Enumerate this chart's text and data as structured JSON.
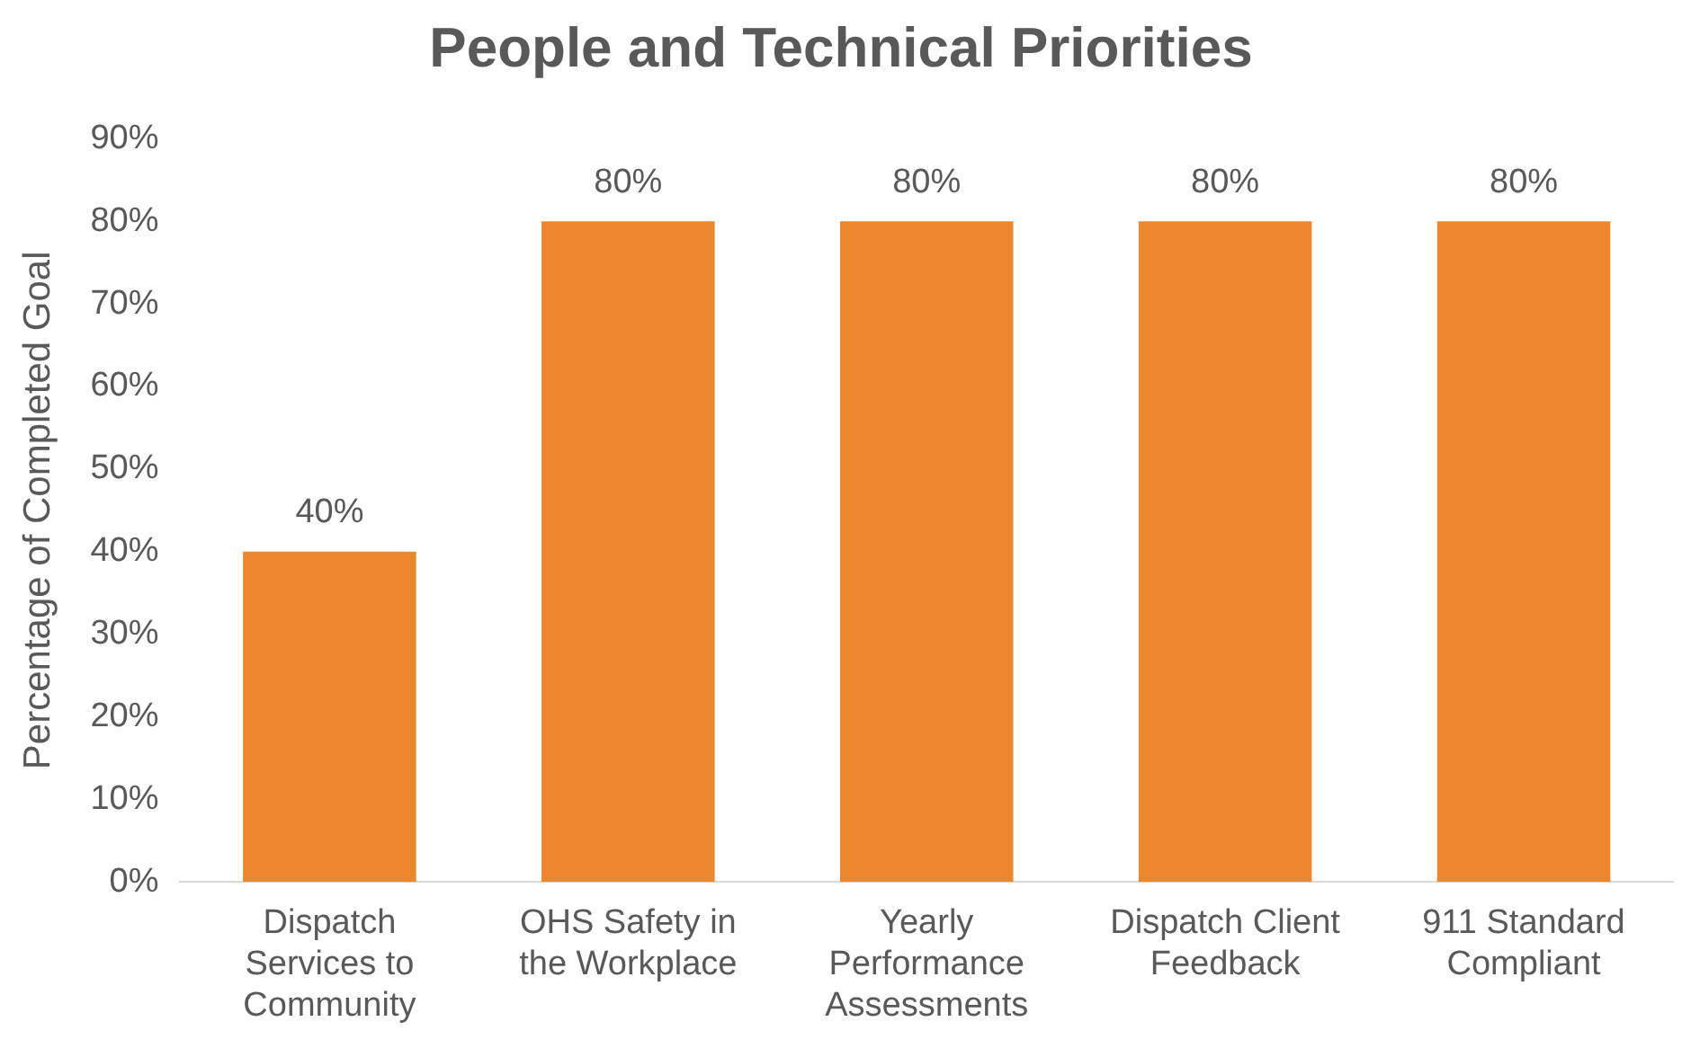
{
  "chart_data": {
    "type": "bar",
    "title": "People and Technical Priorities",
    "ylabel": "Percentage of Completed Goal",
    "categories": [
      "Dispatch Services to Community",
      "OHS Safety in the Workplace",
      "Yearly Performance Assessments",
      "Dispatch Client Feedback",
      "911 Standard Compliant"
    ],
    "values": [
      40,
      80,
      80,
      80,
      80
    ],
    "value_labels": [
      "40%",
      "80%",
      "80%",
      "80%",
      "80%"
    ],
    "color": "#ed872d",
    "ylim": [
      0,
      90
    ],
    "yticks": [
      {
        "value": 0,
        "label": "0%"
      },
      {
        "value": 10,
        "label": "10%"
      },
      {
        "value": 20,
        "label": "20%"
      },
      {
        "value": 30,
        "label": "30%"
      },
      {
        "value": 40,
        "label": "40%"
      },
      {
        "value": 50,
        "label": "50%"
      },
      {
        "value": 60,
        "label": "60%"
      },
      {
        "value": 70,
        "label": "70%"
      },
      {
        "value": 80,
        "label": "80%"
      },
      {
        "value": 90,
        "label": "90%"
      }
    ],
    "grid": false,
    "legend": false
  }
}
